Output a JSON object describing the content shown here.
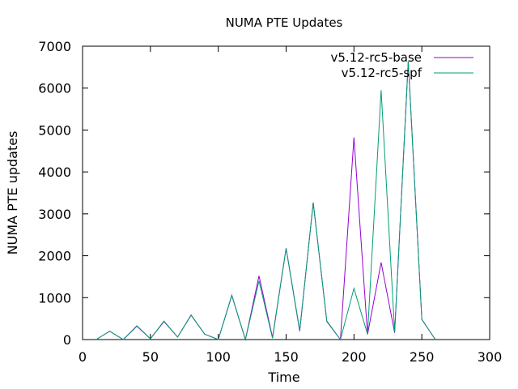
{
  "chart_data": {
    "type": "line",
    "title": "NUMA PTE Updates",
    "xlabel": "Time",
    "ylabel": "NUMA PTE updates",
    "xlim": [
      0,
      300
    ],
    "ylim": [
      0,
      7000
    ],
    "xticks": [
      0,
      50,
      100,
      150,
      200,
      250,
      300
    ],
    "yticks": [
      0,
      1000,
      2000,
      3000,
      4000,
      5000,
      6000,
      7000
    ],
    "grid": false,
    "legend_position": "top-right",
    "x": [
      10,
      20,
      30,
      40,
      50,
      60,
      70,
      80,
      90,
      100,
      110,
      120,
      130,
      140,
      150,
      160,
      170,
      180,
      190,
      200,
      210,
      220,
      230,
      240,
      250,
      260
    ],
    "series": [
      {
        "name": "v5.12-rc5-base",
        "color": "#9400d3",
        "values": [
          0,
          200,
          0,
          320,
          20,
          430,
          60,
          580,
          130,
          0,
          1050,
          0,
          1520,
          50,
          2180,
          200,
          3270,
          430,
          0,
          4820,
          120,
          1840,
          160,
          6640,
          480,
          0
        ]
      },
      {
        "name": "v5.12-rc5-spf",
        "color": "#009e73",
        "values": [
          0,
          200,
          0,
          330,
          20,
          440,
          60,
          590,
          130,
          0,
          1060,
          0,
          1400,
          30,
          2180,
          220,
          3270,
          440,
          0,
          1220,
          130,
          5950,
          180,
          6640,
          480,
          0
        ]
      }
    ]
  }
}
